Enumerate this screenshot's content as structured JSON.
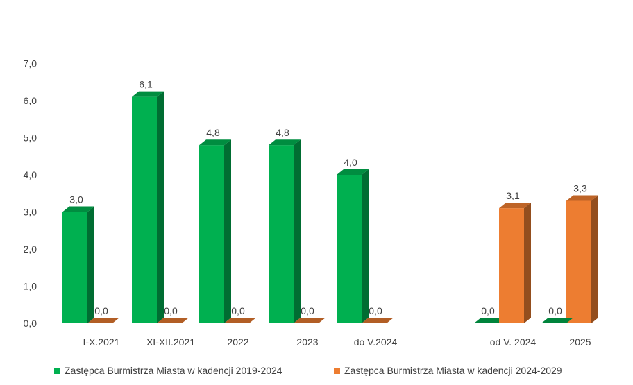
{
  "chart_data": {
    "type": "bar",
    "categories": [
      "I-X.2021",
      "XI-XII.2021",
      "2022",
      "2023",
      "do V.2024",
      "od V. 2024",
      "2025"
    ],
    "series": [
      {
        "name": "Zastępca Burmistrza Miasta w kadencji 2019-2024",
        "color": "#00b050",
        "values": [
          3.0,
          6.1,
          4.8,
          4.8,
          4.0,
          0.0,
          null
        ],
        "value_labels": [
          "3,0",
          "6,1",
          "4,8",
          "4,8",
          "4,0",
          "0,0",
          "0,0"
        ]
      },
      {
        "name": "Zastępca Burmistrza Miasta w kadencji 2024-2029",
        "color": "#ed7d31",
        "values": [
          0.0,
          0.0,
          0.0,
          0.0,
          0.0,
          3.1,
          3.3
        ],
        "value_labels": [
          "0,0",
          "0,0",
          "0,0",
          "0,0",
          "0,0",
          "3,1",
          "3,3"
        ]
      }
    ],
    "ylim": [
      0,
      7
    ],
    "yticks": [
      "0,0",
      "1,0",
      "2,0",
      "3,0",
      "4,0",
      "5,0",
      "6,0",
      "7,0"
    ],
    "grid": false,
    "legend_position": "bottom",
    "style": "3d-column"
  }
}
